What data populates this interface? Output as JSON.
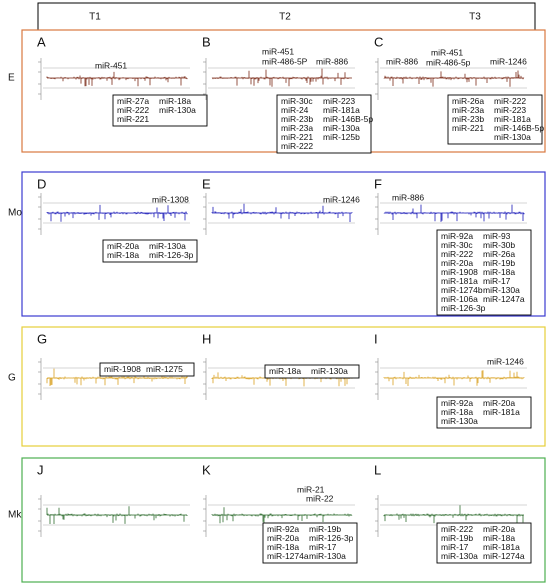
{
  "columns": [
    "T1",
    "T2",
    "T3"
  ],
  "rows": [
    {
      "label": "E",
      "border_color": "#d9793f",
      "trace_color": "#7a2a18",
      "spike_color": "#d04040",
      "panels": [
        {
          "letter": "A",
          "top_labels": [
            "miR-451"
          ],
          "box": [
            [
              "miR-27a",
              "miR-222",
              "miR-221"
            ],
            [
              "miR-18a",
              "miR-130a"
            ]
          ]
        },
        {
          "letter": "B",
          "top_labels": [
            "miR-451",
            "miR-486-5P",
            "miR-886"
          ],
          "box": [
            [
              "miR-30c",
              "miR-24",
              "miR-23b",
              "miR-23a",
              "miR-221",
              "miR-222"
            ],
            [
              "miR-223",
              "miR-181a",
              "miR-146B-5p",
              "miR-130a",
              "miR-125b"
            ]
          ]
        },
        {
          "letter": "C",
          "top_labels": [
            "miR-886",
            "miR-451",
            "miR-486-5p",
            "miR-1246"
          ],
          "box": [
            [
              "miR-26a",
              "miR-23a",
              "miR-23b",
              "miR-221"
            ],
            [
              "miR-222",
              "miR-223",
              "miR-181a",
              "miR-146B-5p",
              "miR-130a"
            ]
          ]
        }
      ]
    },
    {
      "label": "Mo",
      "border_color": "#3b3bd0",
      "trace_color": "#1a1ab8",
      "spike_color": "#1a1ab8",
      "panels": [
        {
          "letter": "D",
          "top_labels": [
            "miR-1308"
          ],
          "box": [
            [
              "miR-20a",
              "miR-18a"
            ],
            [
              "miR-130a",
              "miR-126-3p"
            ]
          ]
        },
        {
          "letter": "E",
          "top_labels": [
            "miR-1246"
          ],
          "box": []
        },
        {
          "letter": "F",
          "top_labels": [
            "miR-886"
          ],
          "box": [
            [
              "miR-92a",
              "miR-30c",
              "miR-222",
              "miR-20a",
              "miR-1908",
              "miR-181a",
              "miR-1274b",
              "miR-106a",
              "miR-126-3p"
            ],
            [
              "miR-93",
              "miR-30b",
              "miR-26a",
              "miR-19b",
              "miR-18a",
              "miR-17",
              "miR-130a",
              "miR-1247a"
            ]
          ]
        }
      ]
    },
    {
      "label": "G",
      "border_color": "#e6cf3a",
      "trace_color": "#d9a020",
      "spike_color": "#d9a020",
      "panels": [
        {
          "letter": "G",
          "top_labels": [],
          "box": [
            [
              "miR-1908"
            ],
            [
              "miR-1275"
            ]
          ]
        },
        {
          "letter": "H",
          "top_labels": [],
          "box": [
            [
              "miR-18a"
            ],
            [
              "miR-130a"
            ]
          ]
        },
        {
          "letter": "I",
          "top_labels": [
            "miR-1246"
          ],
          "box": [
            [
              "miR-92a",
              "miR-18a",
              "miR-130a"
            ],
            [
              "miR-20a",
              "miR-181a"
            ]
          ]
        }
      ]
    },
    {
      "label": "Mk",
      "border_color": "#4caf50",
      "trace_color": "#2e6b2e",
      "spike_color": "#2e6b2e",
      "panels": [
        {
          "letter": "J",
          "top_labels": [],
          "box": []
        },
        {
          "letter": "K",
          "top_labels": [
            "miR-21",
            "miR-22"
          ],
          "box": [
            [
              "miR-92a",
              "miR-20a",
              "miR-18a",
              "miR-1274a"
            ],
            [
              "miR-19b",
              "miR-126-3p",
              "miR-17",
              "miR-130a"
            ]
          ]
        },
        {
          "letter": "L",
          "top_labels": [],
          "box": [
            [
              "miR-222",
              "miR-19b",
              "miR-17",
              "miR-130a"
            ],
            [
              "miR-20a",
              "miR-18a",
              "miR-181a",
              "miR-1274a"
            ]
          ]
        }
      ]
    }
  ]
}
